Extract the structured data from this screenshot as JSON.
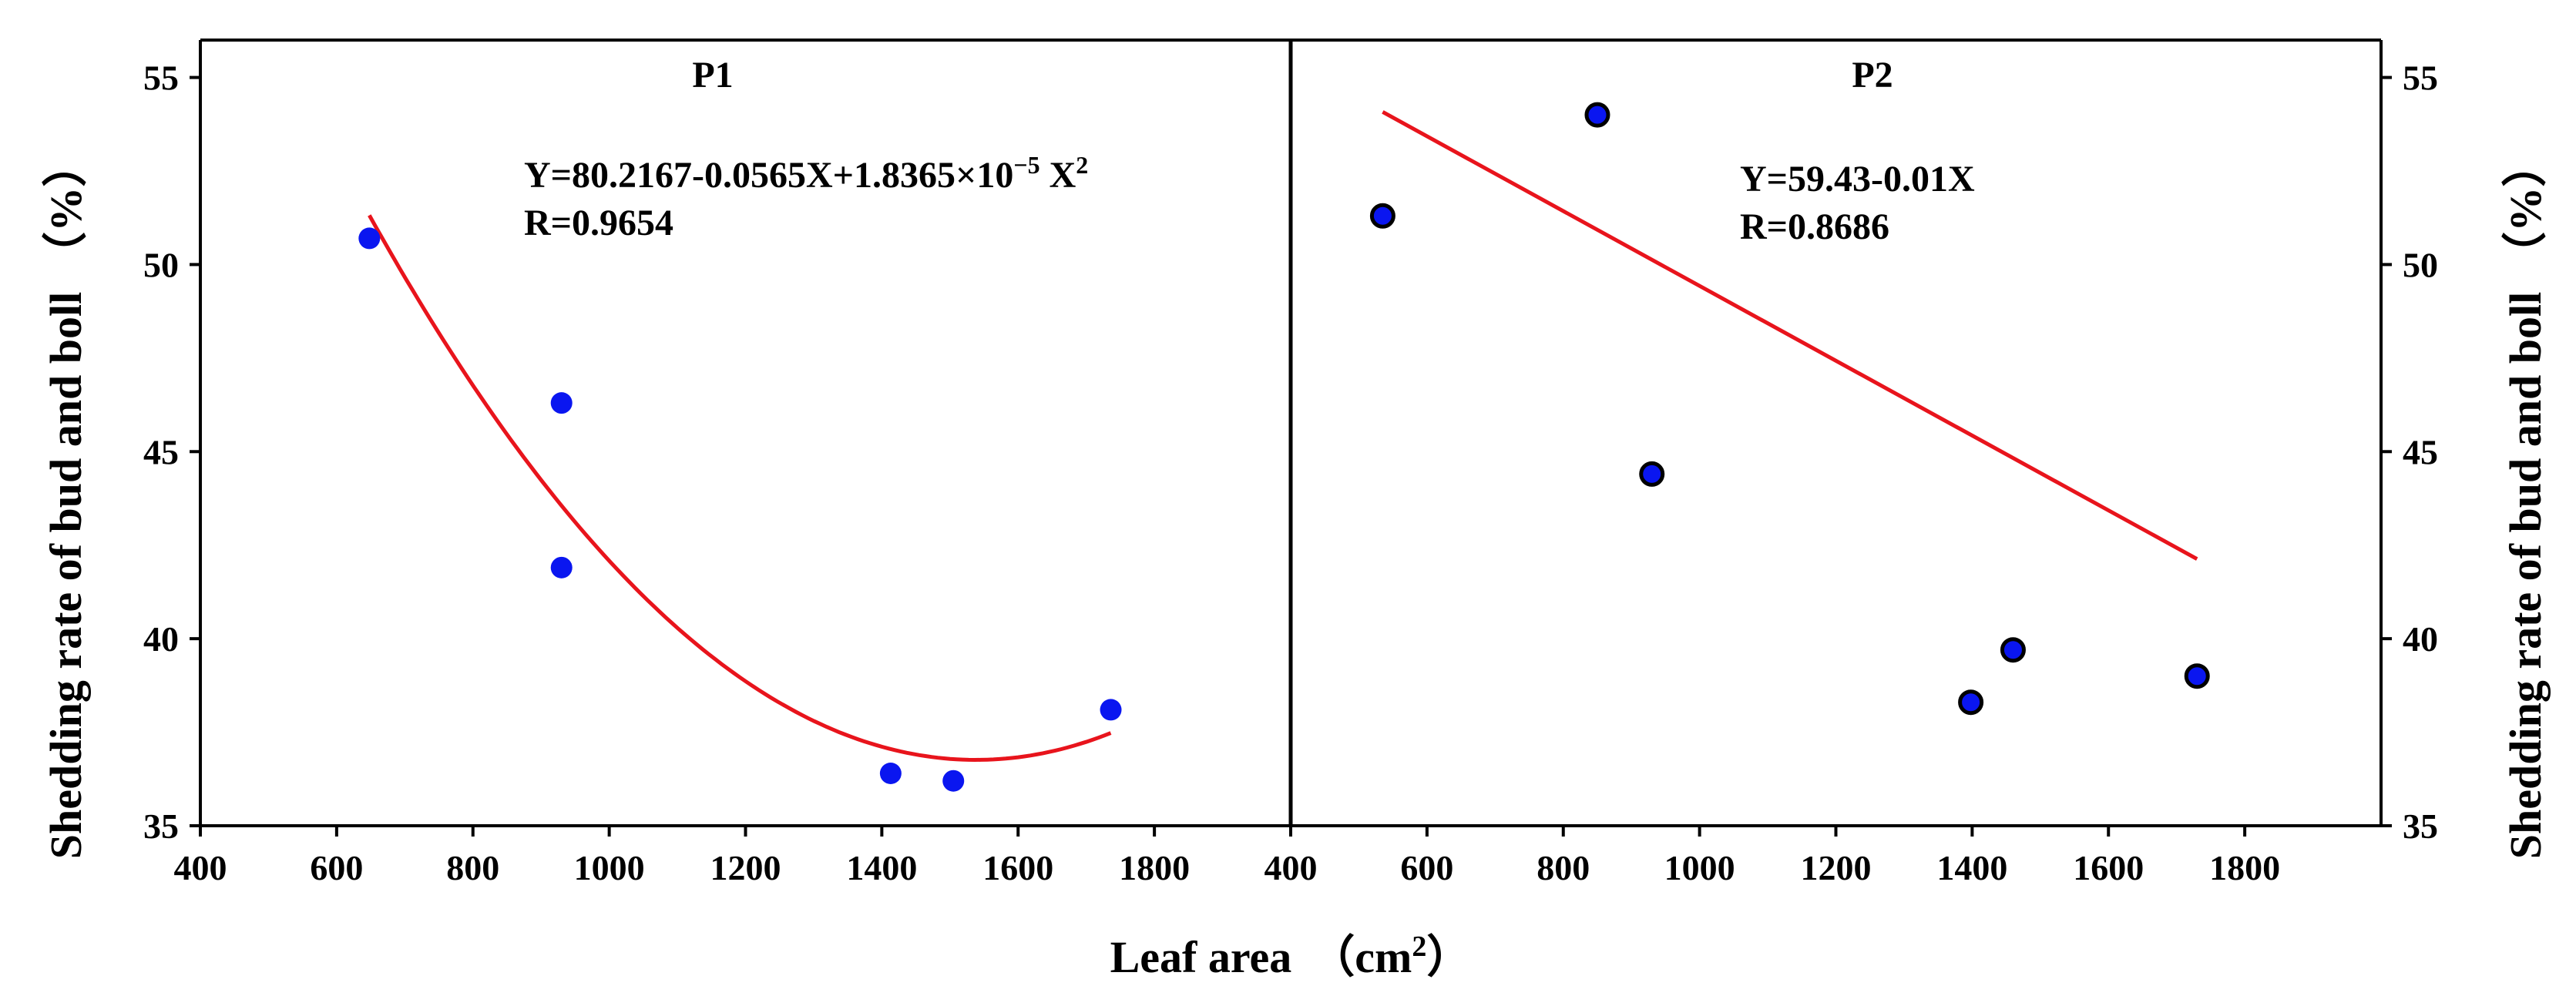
{
  "chart_data": [
    {
      "type": "scatter",
      "panel": "P1",
      "title": "P1",
      "xlabel": "Leaf area （cm²）",
      "ylabel": "Shedding rate of bud and boll （%）",
      "xlim": [
        400,
        2000
      ],
      "ylim": [
        35,
        56
      ],
      "xticks": [
        400,
        600,
        800,
        1000,
        1200,
        1400,
        1600,
        1800
      ],
      "yticks": [
        35,
        40,
        45,
        50,
        55
      ],
      "points": [
        {
          "x": 648,
          "y": 50.7
        },
        {
          "x": 930,
          "y": 46.3
        },
        {
          "x": 930,
          "y": 41.9
        },
        {
          "x": 1413,
          "y": 36.4
        },
        {
          "x": 1505,
          "y": 36.2
        },
        {
          "x": 1736,
          "y": 38.1
        }
      ],
      "marker_color": "#0a16f0",
      "marker_outline": "none",
      "fit": {
        "kind": "quadratic",
        "coefficients": [
          80.2167,
          -0.0565,
          1.8365e-05
        ],
        "x_range": [
          648,
          1736
        ],
        "color": "#e8141c"
      },
      "equation": "Y=80.2167-0.0565X+1.8365×10",
      "equation_exponent": "−5",
      "equation_suffix": " X",
      "equation_suffix_exponent": "2",
      "r_label": "R=0.9654"
    },
    {
      "type": "scatter",
      "panel": "P2",
      "title": "P2",
      "xlabel": "Leaf area （cm²）",
      "ylabel": "Shedding rate of bud and boll （%）",
      "xlim": [
        400,
        2000
      ],
      "ylim": [
        35,
        56
      ],
      "xticks": [
        400,
        600,
        800,
        1000,
        1200,
        1400,
        1600,
        1800
      ],
      "yticks": [
        35,
        40,
        45,
        50,
        55
      ],
      "points": [
        {
          "x": 535,
          "y": 51.3
        },
        {
          "x": 850,
          "y": 54.0
        },
        {
          "x": 930,
          "y": 44.4
        },
        {
          "x": 1398,
          "y": 38.3
        },
        {
          "x": 1460,
          "y": 39.7
        },
        {
          "x": 1730,
          "y": 39.0
        }
      ],
      "marker_color": "#0a16f0",
      "marker_outline": "#000000",
      "fit": {
        "kind": "linear",
        "coefficients": [
          59.43,
          -0.01
        ],
        "x_range": [
          535,
          1730
        ],
        "color": "#e8141c"
      },
      "equation": "Y=59.43-0.01X",
      "r_label": "R=0.8686"
    }
  ],
  "shared_xlabel_main": "Leaf area",
  "shared_xlabel_unit": "（cm",
  "shared_xlabel_unit_sup": "2",
  "shared_xlabel_unit_close": "）",
  "shared_ylabel_main": "Shedding rate of bud and boll",
  "shared_ylabel_unit": "（%）"
}
